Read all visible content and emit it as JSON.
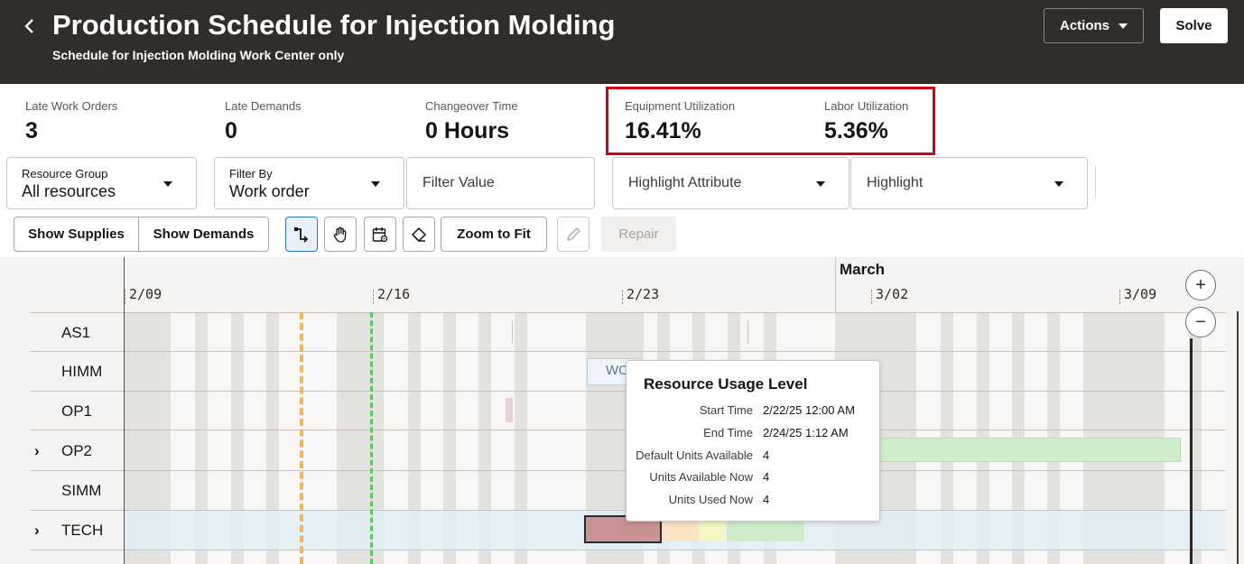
{
  "header": {
    "title": "Production Schedule for Injection Molding",
    "subtitle": "Schedule for Injection Molding Work Center only",
    "actions_label": "Actions",
    "solve_label": "Solve"
  },
  "metrics": [
    {
      "label": "Late Work Orders",
      "value": "3"
    },
    {
      "label": "Late Demands",
      "value": "0"
    },
    {
      "label": "Changeover Time",
      "value": "0 Hours"
    },
    {
      "label": "Equipment Utilization",
      "value": "16.41%"
    },
    {
      "label": "Labor Utilization",
      "value": "5.36%"
    }
  ],
  "filters": {
    "resource_group": {
      "label": "Resource Group",
      "value": "All resources"
    },
    "filter_by": {
      "label": "Filter By",
      "value": "Work order"
    },
    "filter_value": {
      "placeholder": "Filter Value"
    },
    "highlight_attribute": {
      "placeholder": "Highlight Attribute"
    },
    "highlight": {
      "placeholder": "Highlight"
    }
  },
  "toolbar": {
    "show_supplies": "Show Supplies",
    "show_demands": "Show Demands",
    "zoom_to_fit": "Zoom to Fit",
    "repair": "Repair",
    "icons": [
      "connector-icon",
      "pan-hand-icon",
      "calendar-settings-icon",
      "eraser-icon",
      "pencil-icon"
    ]
  },
  "gantt": {
    "month": "March",
    "ticks": [
      "2/09",
      "2/16",
      "2/23",
      "3/02",
      "3/09"
    ],
    "rows": [
      {
        "label": "AS1",
        "expandable": false
      },
      {
        "label": "HIMM",
        "expandable": false
      },
      {
        "label": "OP1",
        "expandable": false
      },
      {
        "label": "OP2",
        "expandable": true
      },
      {
        "label": "SIMM",
        "expandable": false
      },
      {
        "label": "TECH",
        "expandable": true
      }
    ],
    "work_order_label": "WO"
  },
  "tooltip": {
    "title": "Resource Usage Level",
    "fields": [
      {
        "key": "Start Time",
        "value": "2/22/25 12:00 AM"
      },
      {
        "key": "End Time",
        "value": "2/24/25 1:12 AM"
      },
      {
        "key": "Default Units Available",
        "value": "4"
      },
      {
        "key": "Units Available Now",
        "value": "4"
      },
      {
        "key": "Units Used Now",
        "value": "4"
      }
    ]
  },
  "colors": {
    "header_bg": "#312d2a",
    "highlight_border": "#d0021b",
    "bar_selected": "#c99393",
    "bar_peach": "#fde3c4",
    "bar_yellow": "#f3f7c4",
    "bar_green": "#cdeec9"
  }
}
